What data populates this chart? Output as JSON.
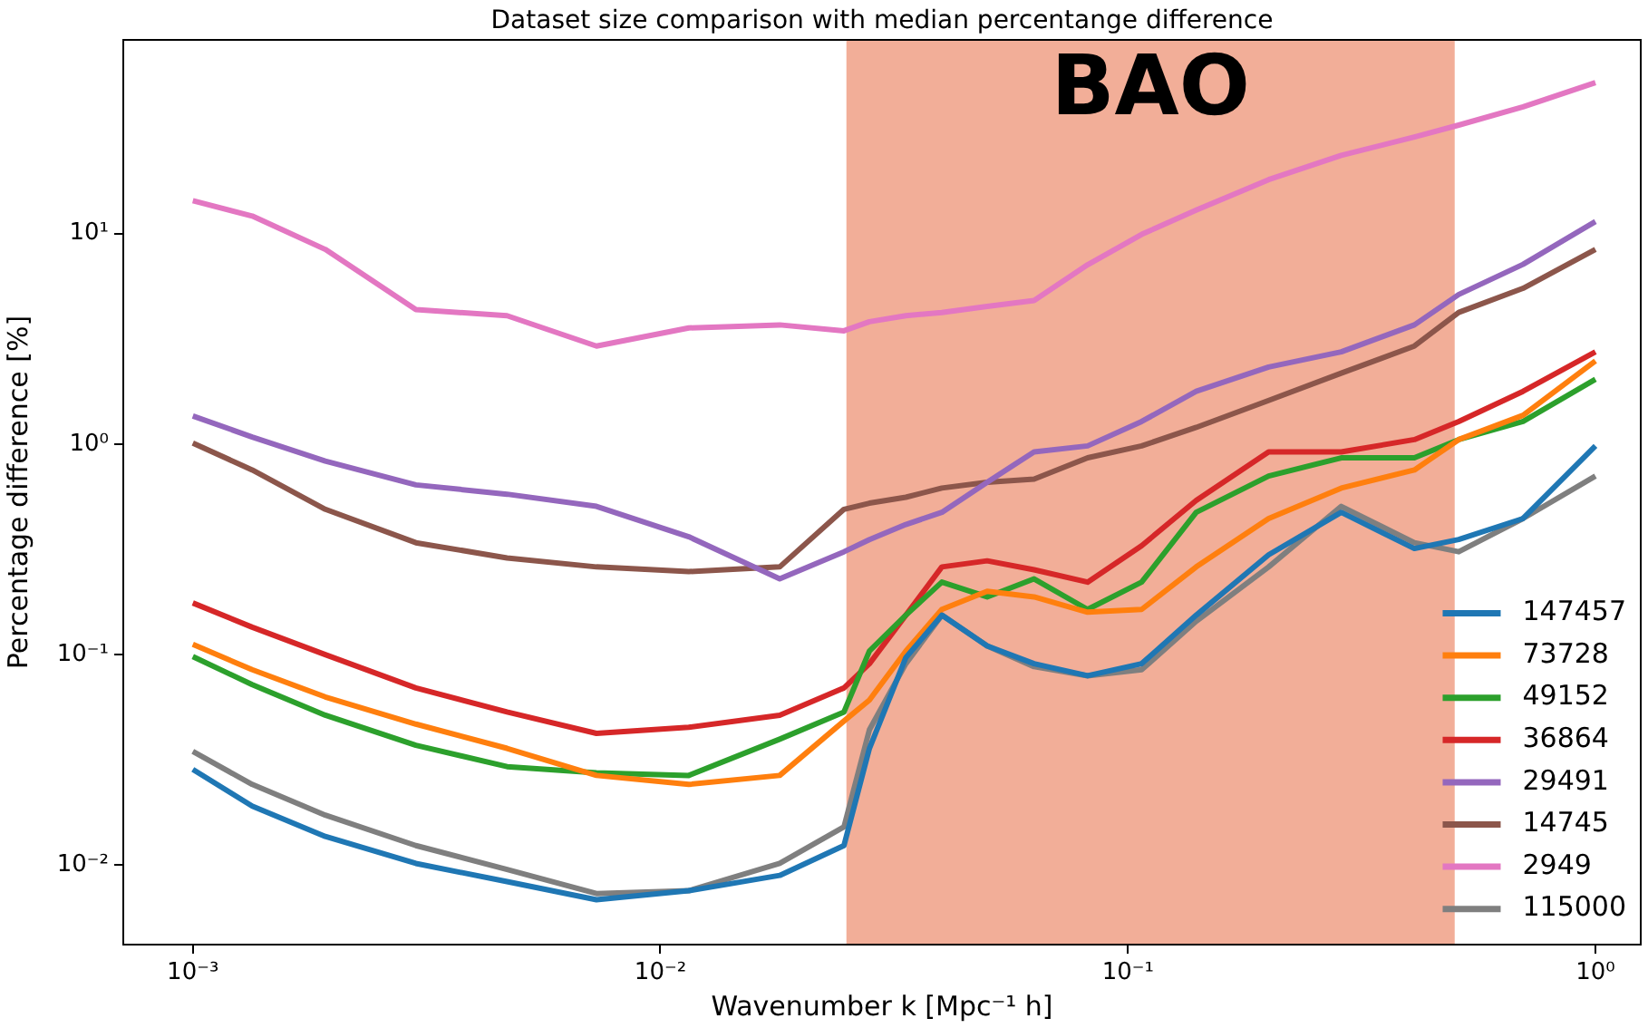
{
  "chart_data": {
    "type": "line",
    "title": "Dataset size comparison with median percentange difference",
    "xlabel": "Wavenumber k [Mpc⁻¹ h]",
    "ylabel": "Percentage difference [%]",
    "x": [
      0.001,
      0.00134,
      0.00192,
      0.003,
      0.0047,
      0.0073,
      0.0115,
      0.018,
      0.0247,
      0.028,
      0.0335,
      0.04,
      0.05,
      0.063,
      0.082,
      0.107,
      0.14,
      0.2,
      0.286,
      0.41,
      0.51,
      0.7,
      1.0
    ],
    "series": [
      {
        "name": "147457",
        "color": "#1f77b4",
        "values": [
          0.0285,
          0.0191,
          0.0137,
          0.0102,
          0.00836,
          0.00686,
          0.00757,
          0.00895,
          0.0124,
          0.0359,
          0.0969,
          0.154,
          0.11,
          0.0906,
          0.0794,
          0.0906,
          0.154,
          0.298,
          0.474,
          0.319,
          0.352,
          0.443,
          0.98
        ]
      },
      {
        "name": "73728",
        "color": "#ff7f0e",
        "values": [
          0.112,
          0.0848,
          0.063,
          0.0468,
          0.0359,
          0.0267,
          0.0242,
          0.0267,
          0.0484,
          0.0609,
          0.104,
          0.164,
          0.2,
          0.188,
          0.159,
          0.164,
          0.261,
          0.443,
          0.618,
          0.753,
          1.05,
          1.37,
          2.48
        ]
      },
      {
        "name": "49152",
        "color": "#2ca02c",
        "values": [
          0.098,
          0.072,
          0.0516,
          0.0371,
          0.0294,
          0.0275,
          0.0267,
          0.0397,
          0.0534,
          0.104,
          0.154,
          0.221,
          0.188,
          0.229,
          0.164,
          0.221,
          0.474,
          0.705,
          0.86,
          0.86,
          1.05,
          1.28,
          2.03
        ]
      },
      {
        "name": "36864",
        "color": "#d62728",
        "values": [
          0.176,
          0.135,
          0.1,
          0.0695,
          0.0534,
          0.0423,
          0.0452,
          0.0516,
          0.0695,
          0.0906,
          0.154,
          0.261,
          0.279,
          0.253,
          0.221,
          0.329,
          0.54,
          0.918,
          0.918,
          1.05,
          1.28,
          1.78,
          2.74
        ]
      },
      {
        "name": "29491",
        "color": "#9467bd",
        "values": [
          1.36,
          1.08,
          0.83,
          0.64,
          0.578,
          0.506,
          0.363,
          0.229,
          0.308,
          0.352,
          0.415,
          0.474,
          0.659,
          0.918,
          0.98,
          1.28,
          1.78,
          2.32,
          2.74,
          3.68,
          5.13,
          7.13,
          11.4
        ]
      },
      {
        "name": "14745",
        "color": "#8c564b",
        "values": [
          1.01,
          0.753,
          0.49,
          0.34,
          0.288,
          0.261,
          0.248,
          0.261,
          0.49,
          0.524,
          0.559,
          0.618,
          0.659,
          0.682,
          0.86,
          0.98,
          1.2,
          1.61,
          2.17,
          2.92,
          4.22,
          5.49,
          8.4
        ]
      },
      {
        "name": "2949",
        "color": "#e377c2",
        "values": [
          14.3,
          12.1,
          8.4,
          4.35,
          4.07,
          2.92,
          3.56,
          3.68,
          3.45,
          3.81,
          4.07,
          4.21,
          4.5,
          4.8,
          7.1,
          9.9,
          12.9,
          18.0,
          23.5,
          28.7,
          32.7,
          39.9,
          52
        ]
      },
      {
        "name": "115000",
        "color": "#7f7f7f",
        "values": [
          0.0347,
          0.0242,
          0.0173,
          0.0124,
          0.00955,
          0.00734,
          0.00757,
          0.0102,
          0.0152,
          0.044,
          0.0906,
          0.154,
          0.11,
          0.0877,
          0.0794,
          0.0848,
          0.144,
          0.261,
          0.506,
          0.34,
          0.308,
          0.443,
          0.705
        ]
      }
    ],
    "log": "xy",
    "xlim": [
      0.00071,
      1.25
    ],
    "ylim": [
      0.0042,
      83
    ],
    "xticks": [
      {
        "value": 0.001,
        "label": "10⁻³"
      },
      {
        "value": 0.01,
        "label": "10⁻²"
      },
      {
        "value": 0.1,
        "label": "10⁻¹"
      },
      {
        "value": 1,
        "label": "10⁰"
      }
    ],
    "yticks": [
      {
        "value": 0.01,
        "label": "10⁻²"
      },
      {
        "value": 0.1,
        "label": "10⁻¹"
      },
      {
        "value": 1,
        "label": "10⁰"
      },
      {
        "value": 10,
        "label": "10¹"
      }
    ],
    "bands": [
      {
        "axis": "x",
        "from": 0.025,
        "to": 0.5,
        "label": "BAO",
        "color": "#f2ae98"
      }
    ],
    "grid": false,
    "legend": "bottom right",
    "marker": "none",
    "line_style": "solid"
  }
}
